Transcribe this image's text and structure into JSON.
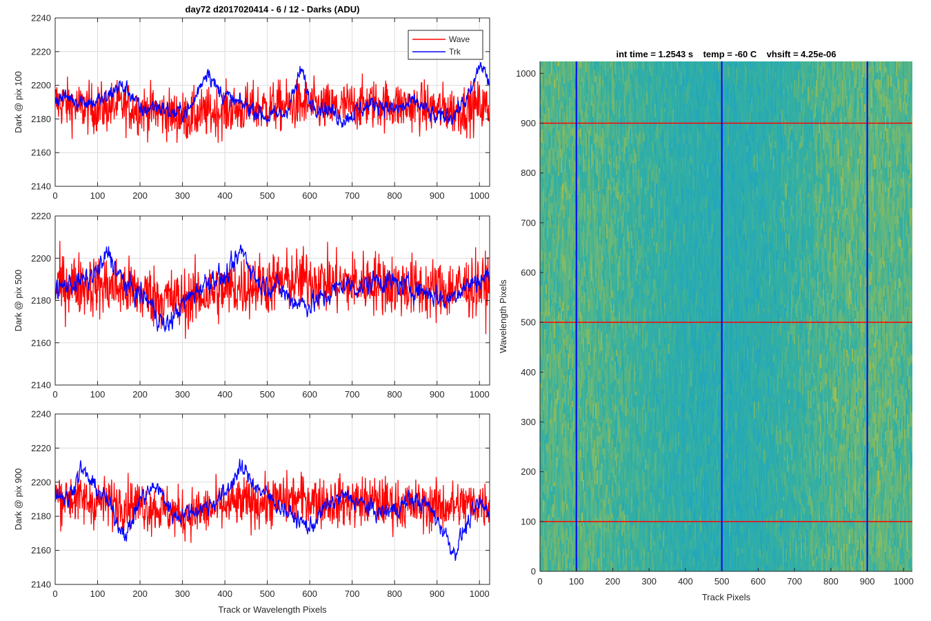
{
  "figure": {
    "title": "day72 d2017020414 - 6 / 12 - Darks (ADU)"
  },
  "chart_data": [
    {
      "type": "line",
      "id": "dark-pix-100",
      "ylabel": "Dark @ pix 100",
      "xlabel": "",
      "xlim": [
        0,
        1024
      ],
      "ylim": [
        2140,
        2240
      ],
      "xticks": [
        0,
        100,
        200,
        300,
        400,
        500,
        600,
        700,
        800,
        900,
        1000
      ],
      "yticks": [
        2140,
        2160,
        2180,
        2200,
        2220,
        2240
      ],
      "grid": true,
      "legend": {
        "position": "top-right",
        "entries": [
          "Wave",
          "Trk"
        ]
      },
      "series": [
        {
          "name": "Wave",
          "color": "#ff0000",
          "x": [
            0,
            50,
            100,
            150,
            200,
            250,
            300,
            350,
            400,
            450,
            500,
            550,
            600,
            650,
            700,
            750,
            800,
            850,
            900,
            950,
            1000,
            1023
          ],
          "values": [
            2190,
            2187,
            2186,
            2188,
            2186,
            2184,
            2181,
            2183,
            2185,
            2186,
            2187,
            2188,
            2188,
            2186,
            2188,
            2189,
            2188,
            2187,
            2186,
            2185,
            2188,
            2186
          ]
        },
        {
          "name": "Trk",
          "color": "#0000ff",
          "x": [
            0,
            30,
            60,
            90,
            120,
            150,
            180,
            200,
            240,
            280,
            320,
            345,
            360,
            380,
            420,
            460,
            500,
            540,
            570,
            580,
            600,
            640,
            680,
            720,
            760,
            800,
            850,
            900,
            940,
            980,
            1000,
            1010,
            1023
          ],
          "values": [
            2192,
            2193,
            2191,
            2190,
            2192,
            2200,
            2195,
            2185,
            2188,
            2183,
            2186,
            2202,
            2210,
            2198,
            2190,
            2187,
            2181,
            2183,
            2200,
            2210,
            2190,
            2186,
            2180,
            2186,
            2190,
            2185,
            2190,
            2180,
            2183,
            2195,
            2212,
            2210,
            2200
          ]
        }
      ]
    },
    {
      "type": "line",
      "id": "dark-pix-500",
      "ylabel": "Dark @ pix 500",
      "xlabel": "",
      "xlim": [
        0,
        1024
      ],
      "ylim": [
        2140,
        2220
      ],
      "xticks": [
        0,
        100,
        200,
        300,
        400,
        500,
        600,
        700,
        800,
        900,
        1000
      ],
      "yticks": [
        2140,
        2160,
        2180,
        2200,
        2220
      ],
      "grid": true,
      "series": [
        {
          "name": "Wave",
          "color": "#ff0000",
          "x": [
            0,
            50,
            100,
            150,
            200,
            250,
            300,
            350,
            400,
            450,
            500,
            550,
            600,
            650,
            700,
            750,
            800,
            850,
            900,
            950,
            1000,
            1023
          ],
          "values": [
            2187,
            2188,
            2187,
            2186,
            2184,
            2181,
            2180,
            2183,
            2185,
            2187,
            2188,
            2189,
            2190,
            2188,
            2188,
            2189,
            2187,
            2186,
            2185,
            2186,
            2187,
            2186
          ]
        },
        {
          "name": "Trk",
          "color": "#0000ff",
          "x": [
            0,
            40,
            80,
            110,
            125,
            150,
            180,
            220,
            260,
            300,
            340,
            380,
            400,
            420,
            440,
            480,
            520,
            560,
            600,
            640,
            680,
            720,
            760,
            800,
            840,
            880,
            920,
            960,
            1000,
            1023
          ],
          "values": [
            2185,
            2188,
            2190,
            2196,
            2203,
            2192,
            2185,
            2180,
            2167,
            2178,
            2186,
            2192,
            2190,
            2196,
            2204,
            2188,
            2187,
            2180,
            2178,
            2182,
            2188,
            2186,
            2190,
            2188,
            2186,
            2184,
            2180,
            2186,
            2190,
            2192
          ]
        }
      ]
    },
    {
      "type": "line",
      "id": "dark-pix-900",
      "ylabel": "Dark @ pix 900",
      "xlabel": "Track or Wavelength Pixels",
      "xlim": [
        0,
        1024
      ],
      "ylim": [
        2140,
        2240
      ],
      "xticks": [
        0,
        100,
        200,
        300,
        400,
        500,
        600,
        700,
        800,
        900,
        1000
      ],
      "yticks": [
        2140,
        2160,
        2180,
        2200,
        2220,
        2240
      ],
      "grid": true,
      "series": [
        {
          "name": "Wave",
          "color": "#ff0000",
          "x": [
            0,
            50,
            100,
            150,
            200,
            250,
            300,
            350,
            400,
            450,
            500,
            550,
            600,
            650,
            700,
            750,
            800,
            850,
            900,
            950,
            1000,
            1023
          ],
          "values": [
            2192,
            2190,
            2188,
            2188,
            2187,
            2184,
            2181,
            2183,
            2186,
            2188,
            2188,
            2190,
            2190,
            2188,
            2188,
            2189,
            2187,
            2186,
            2186,
            2186,
            2188,
            2187
          ]
        },
        {
          "name": "Trk",
          "color": "#0000ff",
          "x": [
            0,
            30,
            60,
            90,
            120,
            150,
            170,
            200,
            240,
            280,
            320,
            360,
            400,
            420,
            440,
            480,
            520,
            560,
            600,
            640,
            680,
            720,
            760,
            800,
            840,
            880,
            920,
            940,
            960,
            1000,
            1023
          ],
          "values": [
            2195,
            2190,
            2208,
            2198,
            2190,
            2175,
            2170,
            2190,
            2198,
            2180,
            2183,
            2186,
            2193,
            2202,
            2208,
            2196,
            2188,
            2180,
            2173,
            2186,
            2192,
            2188,
            2182,
            2184,
            2190,
            2186,
            2170,
            2158,
            2170,
            2188,
            2182
          ]
        }
      ]
    },
    {
      "type": "heatmap",
      "id": "dark-image",
      "title": "int time = 1.2543 s    temp = -60 C    vhsift = 4.25e-06",
      "xlabel": "Track Pixels",
      "ylabel": "Wavelength Pixels",
      "xlim": [
        0,
        1024
      ],
      "ylim": [
        0,
        1024
      ],
      "xticks": [
        0,
        100,
        200,
        300,
        400,
        500,
        600,
        700,
        800,
        900,
        1000
      ],
      "yticks": [
        0,
        100,
        200,
        300,
        400,
        500,
        600,
        700,
        800,
        900,
        1000
      ],
      "grid": false,
      "colors": {
        "low": "#1aa3c7",
        "mid": "#35b0a0",
        "high": "#a6bf4a"
      },
      "vertical_lines": {
        "x": [
          100,
          500,
          900
        ],
        "color": "#0000ff"
      },
      "horizontal_lines": {
        "y": [
          100,
          500,
          900
        ],
        "color": "#ff0000"
      }
    }
  ]
}
